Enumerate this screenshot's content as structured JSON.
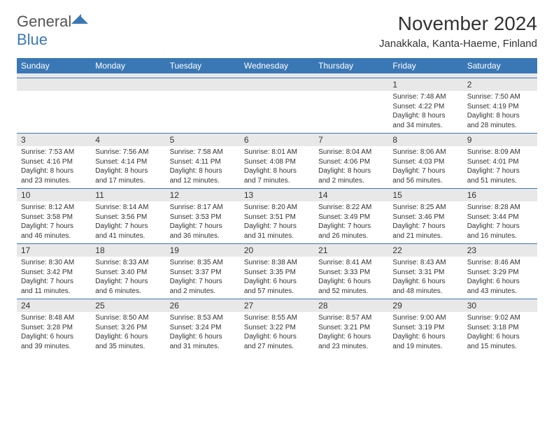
{
  "logo": {
    "general": "General",
    "blue": "Blue",
    "icon_color": "#3a78b5"
  },
  "title": "November 2024",
  "location": "Janakkala, Kanta-Haeme, Finland",
  "day_headers": [
    "Sunday",
    "Monday",
    "Tuesday",
    "Wednesday",
    "Thursday",
    "Friday",
    "Saturday"
  ],
  "colors": {
    "header_bg": "#3a78b5",
    "daynum_bg": "#e8e8e8",
    "week_border": "#3a78b5",
    "text": "#333333",
    "background": "#ffffff"
  },
  "fonts": {
    "title_pt": 21,
    "location_pt": 11,
    "header_pt": 9,
    "body_pt": 7.5
  },
  "weeks": [
    [
      null,
      null,
      null,
      null,
      null,
      {
        "n": "1",
        "sunrise": "Sunrise: 7:48 AM",
        "sunset": "Sunset: 4:22 PM",
        "dl1": "Daylight: 8 hours",
        "dl2": "and 34 minutes."
      },
      {
        "n": "2",
        "sunrise": "Sunrise: 7:50 AM",
        "sunset": "Sunset: 4:19 PM",
        "dl1": "Daylight: 8 hours",
        "dl2": "and 28 minutes."
      }
    ],
    [
      {
        "n": "3",
        "sunrise": "Sunrise: 7:53 AM",
        "sunset": "Sunset: 4:16 PM",
        "dl1": "Daylight: 8 hours",
        "dl2": "and 23 minutes."
      },
      {
        "n": "4",
        "sunrise": "Sunrise: 7:56 AM",
        "sunset": "Sunset: 4:14 PM",
        "dl1": "Daylight: 8 hours",
        "dl2": "and 17 minutes."
      },
      {
        "n": "5",
        "sunrise": "Sunrise: 7:58 AM",
        "sunset": "Sunset: 4:11 PM",
        "dl1": "Daylight: 8 hours",
        "dl2": "and 12 minutes."
      },
      {
        "n": "6",
        "sunrise": "Sunrise: 8:01 AM",
        "sunset": "Sunset: 4:08 PM",
        "dl1": "Daylight: 8 hours",
        "dl2": "and 7 minutes."
      },
      {
        "n": "7",
        "sunrise": "Sunrise: 8:04 AM",
        "sunset": "Sunset: 4:06 PM",
        "dl1": "Daylight: 8 hours",
        "dl2": "and 2 minutes."
      },
      {
        "n": "8",
        "sunrise": "Sunrise: 8:06 AM",
        "sunset": "Sunset: 4:03 PM",
        "dl1": "Daylight: 7 hours",
        "dl2": "and 56 minutes."
      },
      {
        "n": "9",
        "sunrise": "Sunrise: 8:09 AM",
        "sunset": "Sunset: 4:01 PM",
        "dl1": "Daylight: 7 hours",
        "dl2": "and 51 minutes."
      }
    ],
    [
      {
        "n": "10",
        "sunrise": "Sunrise: 8:12 AM",
        "sunset": "Sunset: 3:58 PM",
        "dl1": "Daylight: 7 hours",
        "dl2": "and 46 minutes."
      },
      {
        "n": "11",
        "sunrise": "Sunrise: 8:14 AM",
        "sunset": "Sunset: 3:56 PM",
        "dl1": "Daylight: 7 hours",
        "dl2": "and 41 minutes."
      },
      {
        "n": "12",
        "sunrise": "Sunrise: 8:17 AM",
        "sunset": "Sunset: 3:53 PM",
        "dl1": "Daylight: 7 hours",
        "dl2": "and 36 minutes."
      },
      {
        "n": "13",
        "sunrise": "Sunrise: 8:20 AM",
        "sunset": "Sunset: 3:51 PM",
        "dl1": "Daylight: 7 hours",
        "dl2": "and 31 minutes."
      },
      {
        "n": "14",
        "sunrise": "Sunrise: 8:22 AM",
        "sunset": "Sunset: 3:49 PM",
        "dl1": "Daylight: 7 hours",
        "dl2": "and 26 minutes."
      },
      {
        "n": "15",
        "sunrise": "Sunrise: 8:25 AM",
        "sunset": "Sunset: 3:46 PM",
        "dl1": "Daylight: 7 hours",
        "dl2": "and 21 minutes."
      },
      {
        "n": "16",
        "sunrise": "Sunrise: 8:28 AM",
        "sunset": "Sunset: 3:44 PM",
        "dl1": "Daylight: 7 hours",
        "dl2": "and 16 minutes."
      }
    ],
    [
      {
        "n": "17",
        "sunrise": "Sunrise: 8:30 AM",
        "sunset": "Sunset: 3:42 PM",
        "dl1": "Daylight: 7 hours",
        "dl2": "and 11 minutes."
      },
      {
        "n": "18",
        "sunrise": "Sunrise: 8:33 AM",
        "sunset": "Sunset: 3:40 PM",
        "dl1": "Daylight: 7 hours",
        "dl2": "and 6 minutes."
      },
      {
        "n": "19",
        "sunrise": "Sunrise: 8:35 AM",
        "sunset": "Sunset: 3:37 PM",
        "dl1": "Daylight: 7 hours",
        "dl2": "and 2 minutes."
      },
      {
        "n": "20",
        "sunrise": "Sunrise: 8:38 AM",
        "sunset": "Sunset: 3:35 PM",
        "dl1": "Daylight: 6 hours",
        "dl2": "and 57 minutes."
      },
      {
        "n": "21",
        "sunrise": "Sunrise: 8:41 AM",
        "sunset": "Sunset: 3:33 PM",
        "dl1": "Daylight: 6 hours",
        "dl2": "and 52 minutes."
      },
      {
        "n": "22",
        "sunrise": "Sunrise: 8:43 AM",
        "sunset": "Sunset: 3:31 PM",
        "dl1": "Daylight: 6 hours",
        "dl2": "and 48 minutes."
      },
      {
        "n": "23",
        "sunrise": "Sunrise: 8:46 AM",
        "sunset": "Sunset: 3:29 PM",
        "dl1": "Daylight: 6 hours",
        "dl2": "and 43 minutes."
      }
    ],
    [
      {
        "n": "24",
        "sunrise": "Sunrise: 8:48 AM",
        "sunset": "Sunset: 3:28 PM",
        "dl1": "Daylight: 6 hours",
        "dl2": "and 39 minutes."
      },
      {
        "n": "25",
        "sunrise": "Sunrise: 8:50 AM",
        "sunset": "Sunset: 3:26 PM",
        "dl1": "Daylight: 6 hours",
        "dl2": "and 35 minutes."
      },
      {
        "n": "26",
        "sunrise": "Sunrise: 8:53 AM",
        "sunset": "Sunset: 3:24 PM",
        "dl1": "Daylight: 6 hours",
        "dl2": "and 31 minutes."
      },
      {
        "n": "27",
        "sunrise": "Sunrise: 8:55 AM",
        "sunset": "Sunset: 3:22 PM",
        "dl1": "Daylight: 6 hours",
        "dl2": "and 27 minutes."
      },
      {
        "n": "28",
        "sunrise": "Sunrise: 8:57 AM",
        "sunset": "Sunset: 3:21 PM",
        "dl1": "Daylight: 6 hours",
        "dl2": "and 23 minutes."
      },
      {
        "n": "29",
        "sunrise": "Sunrise: 9:00 AM",
        "sunset": "Sunset: 3:19 PM",
        "dl1": "Daylight: 6 hours",
        "dl2": "and 19 minutes."
      },
      {
        "n": "30",
        "sunrise": "Sunrise: 9:02 AM",
        "sunset": "Sunset: 3:18 PM",
        "dl1": "Daylight: 6 hours",
        "dl2": "and 15 minutes."
      }
    ]
  ]
}
